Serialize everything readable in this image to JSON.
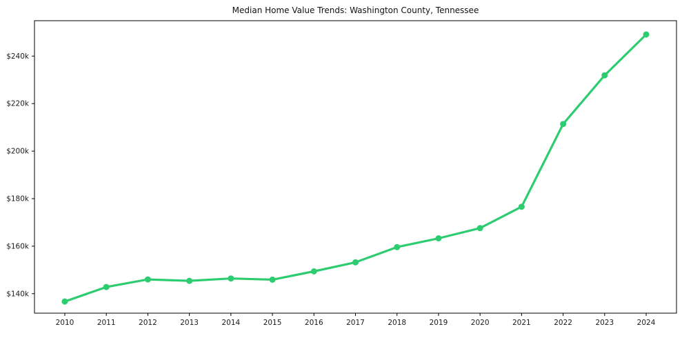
{
  "chart_data": {
    "type": "line",
    "title": "Median Home Value Trends: Washington County, Tennessee",
    "x": [
      2010,
      2011,
      2012,
      2013,
      2014,
      2015,
      2016,
      2017,
      2018,
      2019,
      2020,
      2021,
      2022,
      2023,
      2024
    ],
    "series": [
      {
        "name": "Median Home Value",
        "values": [
          136700,
          142800,
          146000,
          145400,
          146400,
          145900,
          149400,
          153200,
          159600,
          163300,
          167600,
          176600,
          211400,
          231900,
          249100
        ]
      }
    ],
    "xlabel": "",
    "ylabel": "",
    "xlim": [
      2009.27,
      2024.73
    ],
    "ylim": [
      131800,
      254900
    ],
    "yticks": [
      140000,
      160000,
      180000,
      200000,
      220000,
      240000
    ],
    "ytick_labels": [
      "$140k",
      "$160k",
      "$180k",
      "$200k",
      "$220k",
      "$240k"
    ],
    "xticks": [
      2010,
      2011,
      2012,
      2013,
      2014,
      2015,
      2016,
      2017,
      2018,
      2019,
      2020,
      2021,
      2022,
      2023,
      2024
    ],
    "xtick_labels": [
      "2010",
      "2011",
      "2012",
      "2013",
      "2014",
      "2015",
      "2016",
      "2017",
      "2018",
      "2019",
      "2020",
      "2021",
      "2022",
      "2023",
      "2024"
    ],
    "grid": false,
    "legend": "none",
    "line_color": "#2ecc71",
    "marker": "circle",
    "frame_color": "#000000"
  }
}
